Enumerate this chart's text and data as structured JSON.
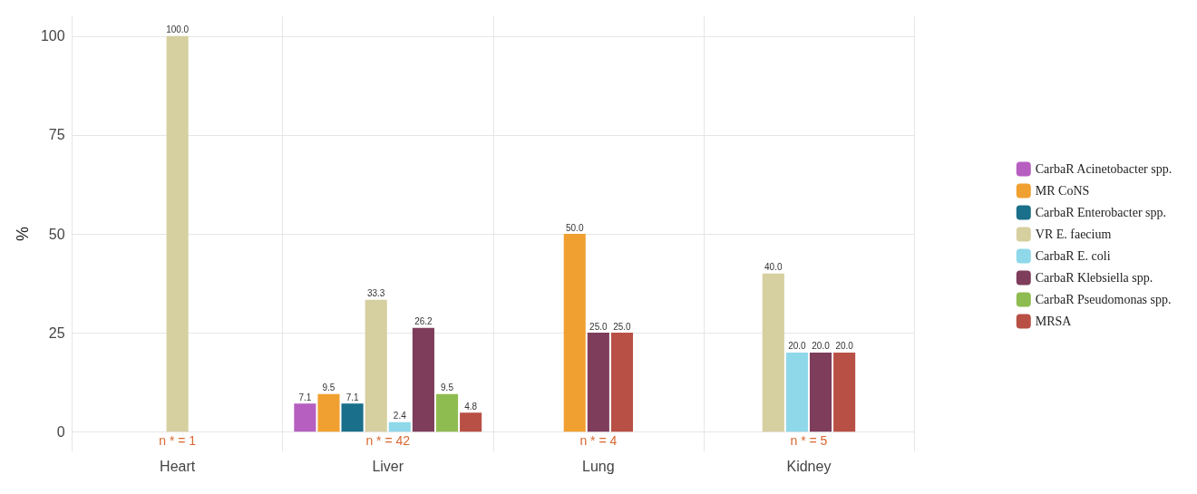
{
  "chart_data": {
    "type": "bar",
    "ylabel": "%",
    "categories": [
      "Heart",
      "Liver",
      "Lung",
      "Kidney"
    ],
    "series": [
      {
        "name": "CarbaR Acinetobacter spp.",
        "color": "#b65fc0",
        "values": [
          null,
          7.1,
          null,
          null
        ],
        "value_labels": [
          null,
          "7.1",
          null,
          null
        ]
      },
      {
        "name": "MR CoNS",
        "color": "#f0a030",
        "values": [
          null,
          9.5,
          50,
          null
        ],
        "value_labels": [
          null,
          "9.5",
          "50.0",
          null
        ]
      },
      {
        "name": "CarbaR Enterobacter spp.",
        "color": "#1a6f8a",
        "values": [
          null,
          7.1,
          null,
          null
        ],
        "value_labels": [
          null,
          "7.1",
          null,
          null
        ]
      },
      {
        "name": "VR E. faecium",
        "color": "#d6cf9f",
        "values": [
          100,
          33.3,
          null,
          40
        ],
        "value_labels": [
          "100.0",
          "33.3",
          null,
          "40.0"
        ]
      },
      {
        "name": "CarbaR E. coli",
        "color": "#8ed8ea",
        "values": [
          null,
          2.4,
          null,
          20
        ],
        "value_labels": [
          null,
          "2.4",
          null,
          "20.0"
        ]
      },
      {
        "name": "CarbaR Klebsiella spp.",
        "color": "#7e3d5a",
        "values": [
          null,
          26.2,
          25,
          20
        ],
        "value_labels": [
          null,
          "26.2",
          "25.0",
          "20.0"
        ]
      },
      {
        "name": "CarbaR Pseudomonas spp.",
        "color": "#8fbc50",
        "values": [
          null,
          9.5,
          null,
          null
        ],
        "value_labels": [
          null,
          "9.5",
          null,
          null
        ]
      },
      {
        "name": "MRSA",
        "color": "#b85045",
        "values": [
          null,
          4.8,
          25,
          20
        ],
        "value_labels": [
          null,
          "4.8",
          "25.0",
          "20.0"
        ]
      }
    ],
    "ylim": [
      -5,
      105
    ],
    "yticks": [
      0,
      25,
      50,
      75,
      100
    ],
    "grid": true,
    "legend": "right",
    "annotations": [
      {
        "text": "n * = 1",
        "x": "Heart",
        "y": 0
      },
      {
        "text": "n * = 42",
        "x": "Liver",
        "y": 0
      },
      {
        "text": "n * = 4",
        "x": "Lung",
        "y": 0
      },
      {
        "text": "n * = 5",
        "x": "Kidney",
        "y": 0
      }
    ]
  }
}
